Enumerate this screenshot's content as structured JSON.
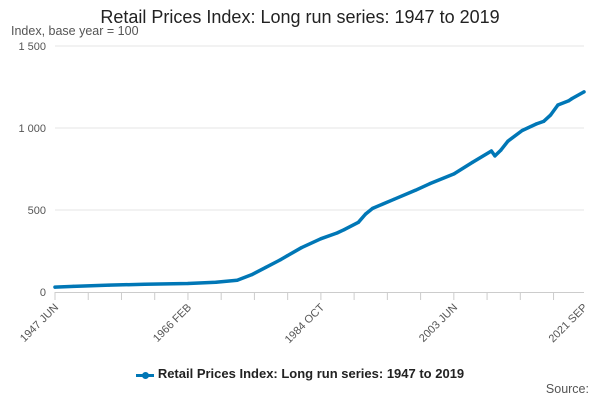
{
  "chart_data": {
    "type": "line",
    "title": "Retail Prices Index: Long run series: 1947 to 2019",
    "subtitle": "Index, base year = 100",
    "credits": "Source:",
    "legend": "Retail Prices Index: Long run series: 1947 to 2019",
    "series": [
      {
        "name": "Retail Prices Index: Long run series: 1947 to 2019",
        "color": "#0077b6",
        "points": [
          {
            "x": 1947.42,
            "y": 30
          },
          {
            "x": 1950,
            "y": 34
          },
          {
            "x": 1955,
            "y": 42
          },
          {
            "x": 1960,
            "y": 47
          },
          {
            "x": 1966.08,
            "y": 52
          },
          {
            "x": 1970,
            "y": 60
          },
          {
            "x": 1973,
            "y": 72
          },
          {
            "x": 1975,
            "y": 105
          },
          {
            "x": 1977,
            "y": 150
          },
          {
            "x": 1979,
            "y": 195
          },
          {
            "x": 1980,
            "y": 220
          },
          {
            "x": 1982,
            "y": 270
          },
          {
            "x": 1984.75,
            "y": 325
          },
          {
            "x": 1987,
            "y": 360
          },
          {
            "x": 1988,
            "y": 380
          },
          {
            "x": 1990,
            "y": 425
          },
          {
            "x": 1991,
            "y": 475
          },
          {
            "x": 1992,
            "y": 510
          },
          {
            "x": 1995,
            "y": 565
          },
          {
            "x": 1998,
            "y": 620
          },
          {
            "x": 2000,
            "y": 660
          },
          {
            "x": 2003.42,
            "y": 720
          },
          {
            "x": 2006,
            "y": 790
          },
          {
            "x": 2008.67,
            "y": 860
          },
          {
            "x": 2009.17,
            "y": 830
          },
          {
            "x": 2010,
            "y": 865
          },
          {
            "x": 2011,
            "y": 920
          },
          {
            "x": 2013,
            "y": 985
          },
          {
            "x": 2015,
            "y": 1025
          },
          {
            "x": 2016,
            "y": 1040
          },
          {
            "x": 2017,
            "y": 1080
          },
          {
            "x": 2018,
            "y": 1140
          },
          {
            "x": 2019.5,
            "y": 1165
          },
          {
            "x": 2020,
            "y": 1180
          },
          {
            "x": 2021.67,
            "y": 1220
          }
        ]
      }
    ],
    "x_ticks": [
      {
        "x": 1947.42,
        "label": "1947 JUN"
      },
      {
        "x": 1966.08,
        "label": "1966 FEB"
      },
      {
        "x": 1984.75,
        "label": "1984 OCT"
      },
      {
        "x": 2003.42,
        "label": "2003 JUN"
      },
      {
        "x": 2021.67,
        "label": "2021 SEP"
      }
    ],
    "xlim": [
      1947.42,
      2021.67
    ],
    "y_ticks": [
      {
        "y": 0,
        "label": "0"
      },
      {
        "y": 500,
        "label": "500"
      },
      {
        "y": 1000,
        "label": "1 000"
      },
      {
        "y": 1500,
        "label": "1 500"
      }
    ],
    "ylim": [
      0,
      1500
    ],
    "grid": {
      "horizontal": true,
      "vertical": false
    },
    "legend_position": "bottom"
  }
}
